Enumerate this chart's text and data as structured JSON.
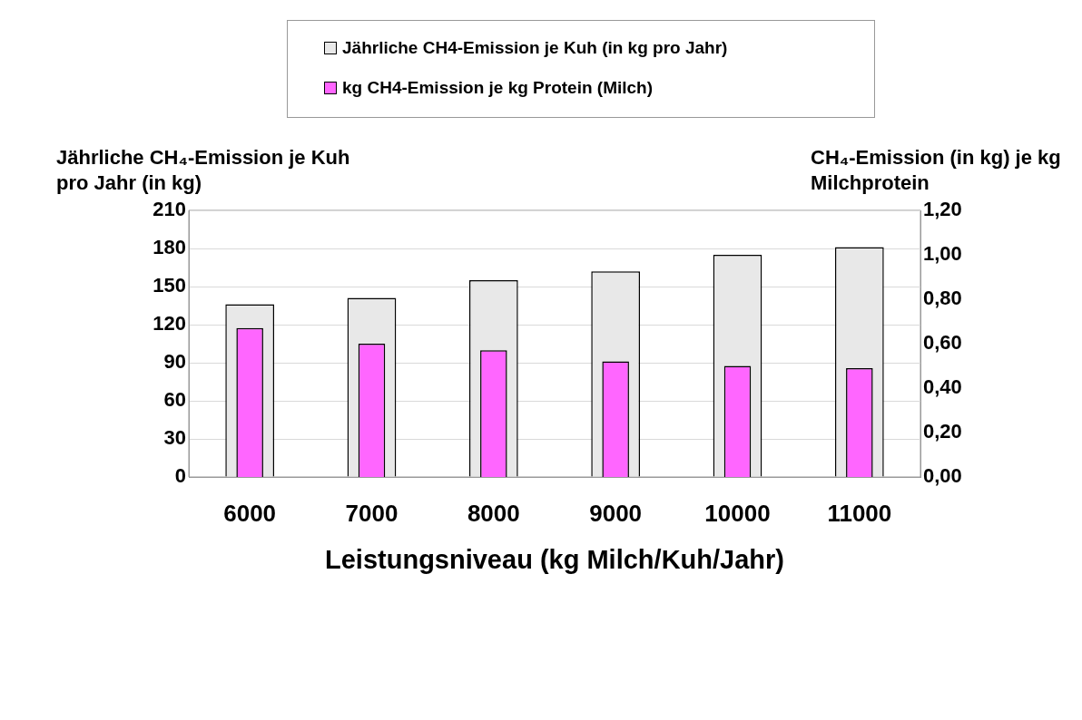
{
  "chart_data": {
    "type": "bar",
    "categories": [
      "6000",
      "7000",
      "8000",
      "9000",
      "10000",
      "11000"
    ],
    "series": [
      {
        "name": "Jährliche CH4-Emission je Kuh (in kg pro Jahr)",
        "color": "#e8e8e8",
        "values": [
          136,
          141,
          155,
          162,
          175,
          181
        ]
      },
      {
        "name": "kg CH4-Emission je kg Protein (Milch)",
        "color": "#ff66ff",
        "axis": "y2",
        "values": [
          0.67,
          0.6,
          0.57,
          0.52,
          0.5,
          0.49
        ]
      }
    ],
    "xlabel": "Leistungsniveau (kg Milch/Kuh/Jahr)",
    "ylabel": "Jährliche CH₄-Emission je Kuh pro Jahr (in kg)",
    "y2label": "CH₄-Emission (in kg) je kg Milchprotein",
    "ylim": [
      0,
      210
    ],
    "yticks": [
      0,
      30,
      60,
      90,
      120,
      150,
      180,
      210
    ],
    "y2lim": [
      0,
      1.2
    ],
    "y2ticks": [
      {
        "value": 0,
        "label": "0,00"
      },
      {
        "value": 0.2,
        "label": "0,20"
      },
      {
        "value": 0.4,
        "label": "0,40"
      },
      {
        "value": 0.6,
        "label": "0,60"
      },
      {
        "value": 0.8,
        "label": "0,80"
      },
      {
        "value": 1,
        "label": "1,00"
      },
      {
        "value": 1.2,
        "label": "1,20"
      }
    ],
    "grid": "y",
    "legend": "top"
  }
}
